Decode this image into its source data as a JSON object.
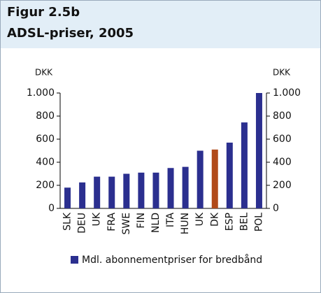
{
  "chart_data": {
    "type": "bar",
    "title": "Figur 2.5b",
    "subtitle": "ADSL-priser, 2005",
    "y_label": "DKK",
    "y2_label": "DKK",
    "categories": [
      "SLK",
      "DEU",
      "UK",
      "FRA",
      "SWE",
      "FIN",
      "NLD",
      "ITA",
      "HUN",
      "UK",
      "DK",
      "ESP",
      "BEL",
      "POL"
    ],
    "series": [
      {
        "name": "Mdl. abonnementpriser for bredbånd",
        "color": "#2b2f8f",
        "colors": [
          "#2b2f8f",
          "#2b2f8f",
          "#2b2f8f",
          "#2b2f8f",
          "#2b2f8f",
          "#2b2f8f",
          "#2b2f8f",
          "#2b2f8f",
          "#2b2f8f",
          "#2b2f8f",
          "#b04a1a",
          "#2b2f8f",
          "#2b2f8f",
          "#2b2f8f"
        ],
        "values": [
          180,
          225,
          275,
          275,
          300,
          310,
          310,
          350,
          360,
          500,
          510,
          570,
          745,
          1000
        ]
      }
    ],
    "ylim": [
      0,
      1000
    ],
    "yticks": [
      0,
      200,
      400,
      600,
      800,
      {
        "value": 1000,
        "label": "1.000"
      }
    ],
    "y2lim": [
      0,
      1000
    ],
    "y2ticks": [
      0,
      200,
      400,
      600,
      800,
      {
        "value": 1000,
        "label": "1.000"
      }
    ],
    "grid": false,
    "legend": "bottom"
  }
}
